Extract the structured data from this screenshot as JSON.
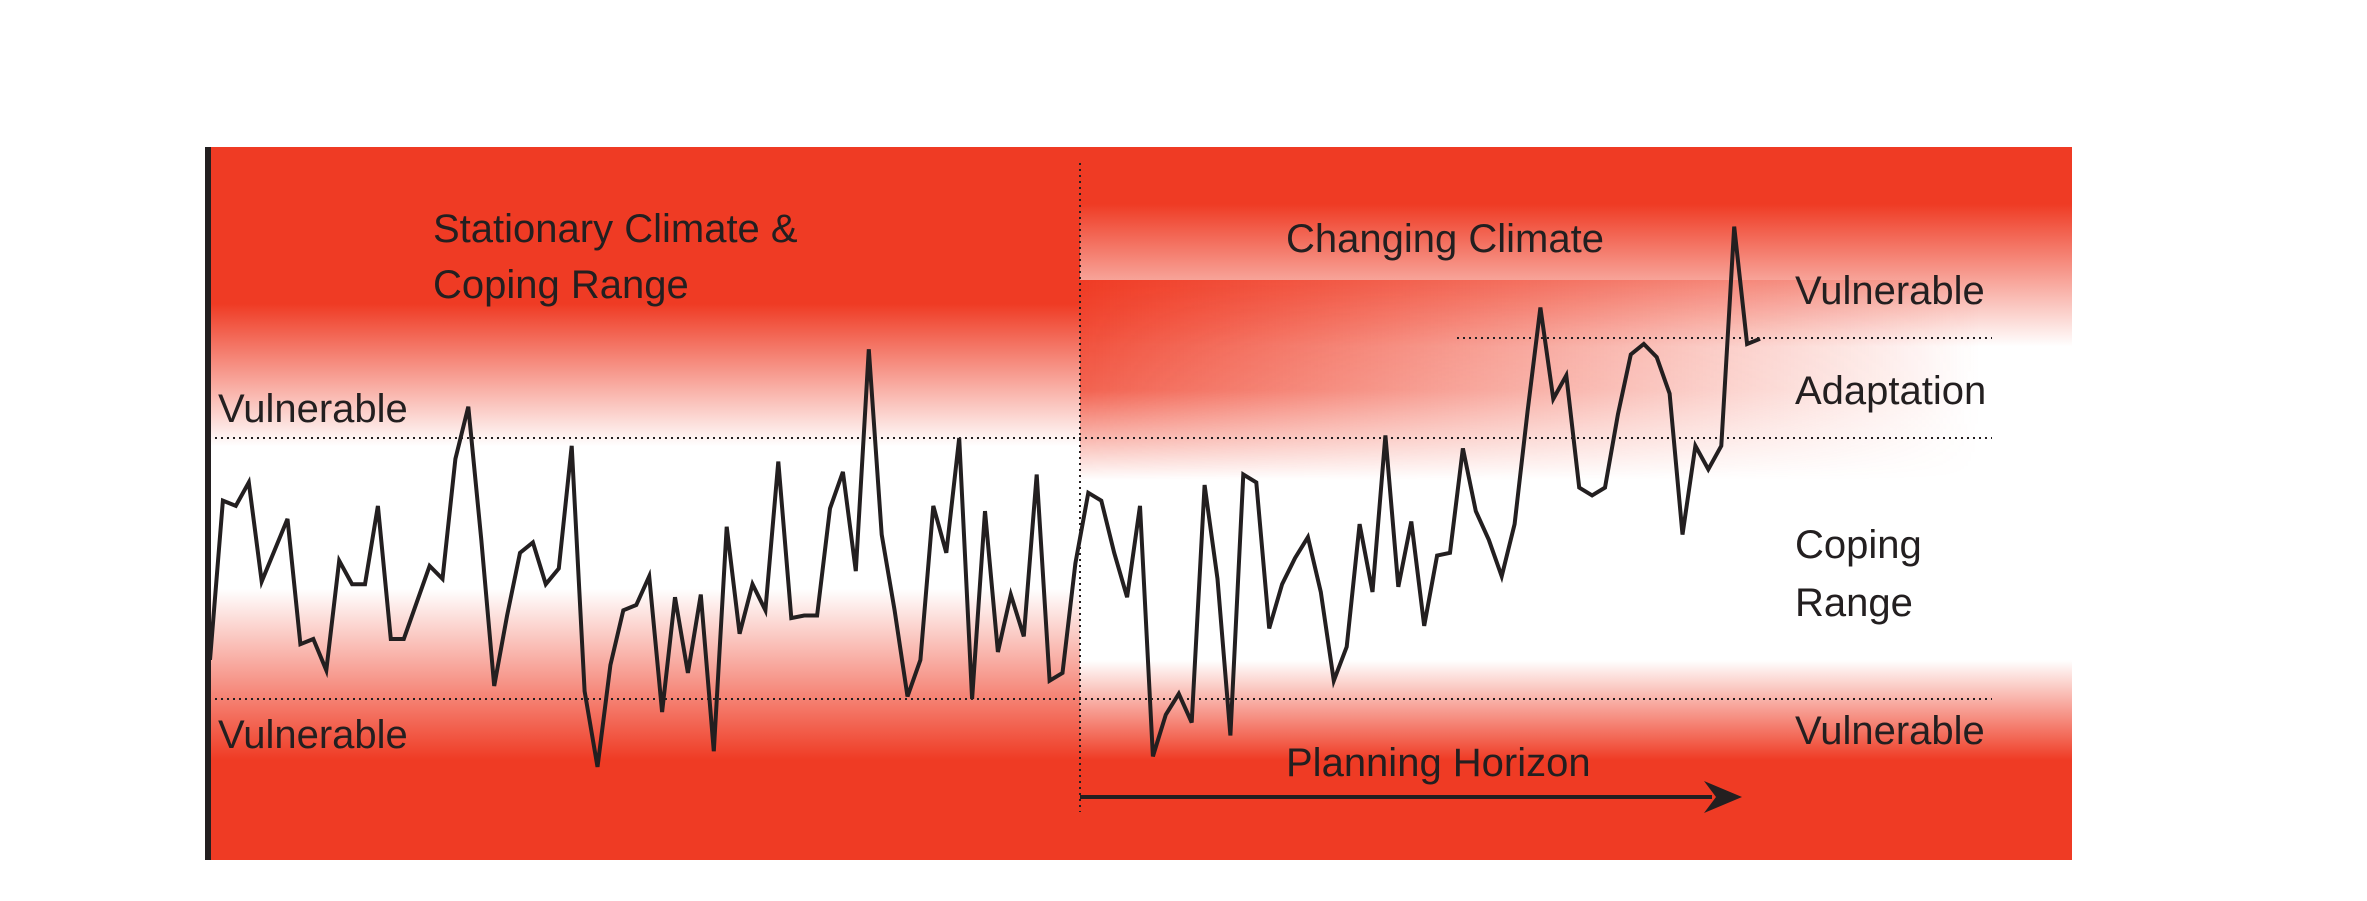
{
  "labels": {
    "stationary_line1": "Stationary Climate &",
    "stationary_line2": "Coping Range",
    "changing": "Changing Climate",
    "left_vulnerable_upper": "Vulnerable",
    "left_vulnerable_lower": "Vulnerable",
    "right_vulnerable_upper": "Vulnerable",
    "adaptation": "Adaptation",
    "coping_line1": "Coping",
    "coping_line2": "Range",
    "right_vulnerable_lower": "Vulnerable",
    "planning_horizon": "Planning Horizon"
  },
  "colors": {
    "vulnerable_red": "#ef3b24",
    "coping_white": "#ffffff",
    "line": "#231f20"
  },
  "series": {
    "values": [
      0.15,
      0.76,
      0.74,
      0.83,
      0.45,
      0.57,
      0.69,
      0.21,
      0.23,
      0.11,
      0.53,
      0.44,
      0.44,
      0.74,
      0.23,
      0.23,
      0.37,
      0.51,
      0.46,
      0.92,
      1.12,
      0.61,
      0.05,
      0.32,
      0.56,
      0.6,
      0.44,
      0.5,
      0.97,
      0.03,
      -0.26,
      0.13,
      0.34,
      0.36,
      0.47,
      -0.05,
      0.39,
      0.1,
      0.4,
      -0.2,
      0.66,
      0.25,
      0.44,
      0.34,
      0.91,
      0.31,
      0.32,
      0.32,
      0.73,
      0.87,
      0.49,
      1.34,
      0.63,
      0.34,
      0.01,
      0.15,
      0.74,
      0.56,
      1.0,
      0.0,
      0.72,
      0.18,
      0.4,
      0.24,
      0.86,
      0.07,
      0.1,
      0.52,
      0.79,
      0.76,
      0.56,
      0.39,
      0.74,
      -0.22,
      -0.06,
      0.02,
      -0.09,
      0.82,
      0.46,
      -0.14,
      0.86,
      0.83,
      0.27,
      0.44,
      0.54,
      0.62,
      0.41,
      0.07,
      0.2,
      0.67,
      0.41,
      1.01,
      0.43,
      0.68,
      0.28,
      0.55,
      0.56,
      0.96,
      0.72,
      0.61,
      0.47,
      0.67,
      1.1,
      1.5,
      1.15,
      1.24,
      0.81,
      0.78,
      0.81,
      1.09,
      1.32,
      1.36,
      1.31,
      1.17,
      0.63,
      0.97,
      0.88,
      0.97,
      1.81,
      1.36,
      1.38
    ]
  }
}
